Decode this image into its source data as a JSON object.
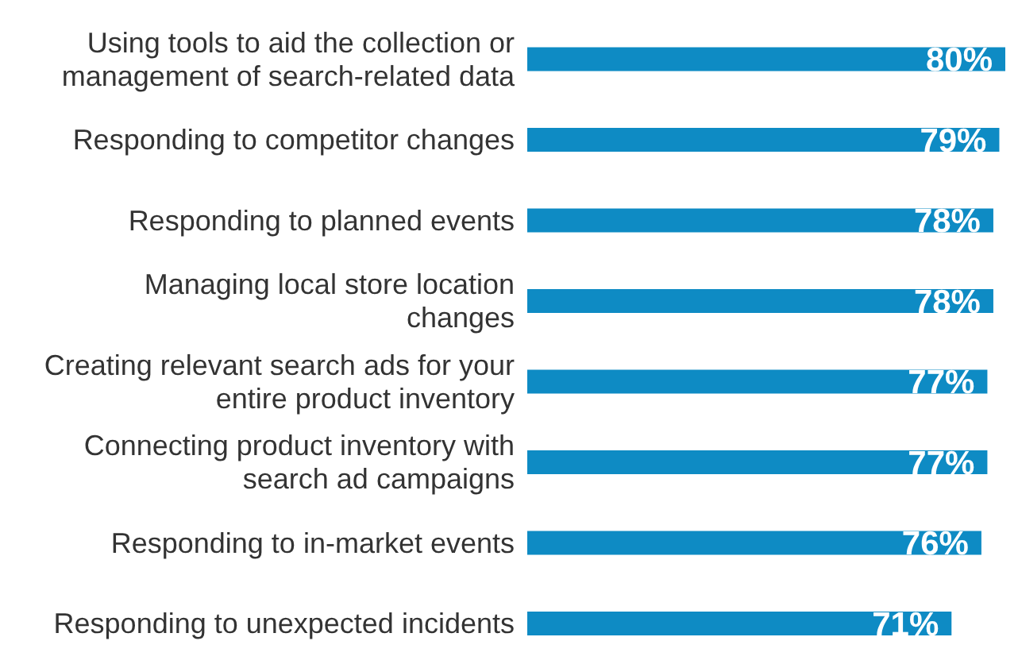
{
  "chart_data": {
    "type": "bar",
    "orientation": "horizontal",
    "categories": [
      "Using tools to aid the collection or management of search-related data",
      "Responding to competitor changes",
      "Responding to planned events",
      "Managing local store location changes",
      "Creating relevant search ads for your entire product inventory",
      "Connecting product inventory with search ad campaigns",
      "Responding to in-market events",
      "Responding to unexpected incidents"
    ],
    "values": [
      80,
      79,
      78,
      78,
      77,
      77,
      76,
      71
    ],
    "value_labels": [
      "80%",
      "79%",
      "78%",
      "78%",
      "77%",
      "77%",
      "76%",
      "71%"
    ],
    "color": "#0e8bc4",
    "tick_labels": "y"
  }
}
